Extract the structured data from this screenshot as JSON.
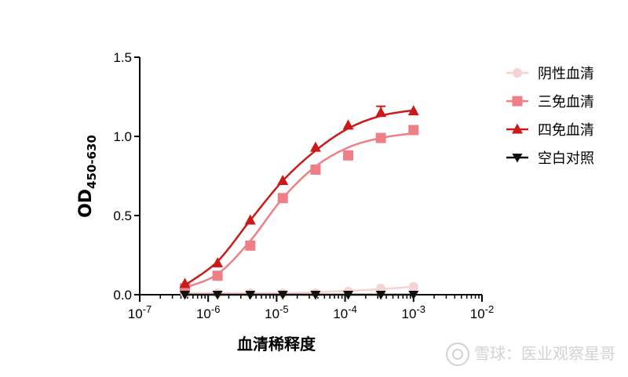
{
  "chart_data": {
    "type": "line",
    "title": "",
    "xlabel": "血清稀释度",
    "ylabel": "OD",
    "ylabel_subscript": "450-630",
    "xscale": "log",
    "xlim": [
      1e-07,
      0.01
    ],
    "ylim": [
      0.0,
      1.5
    ],
    "xtick_exponents": [
      "-7",
      "-6",
      "-5",
      "-4",
      "-3",
      "-2"
    ],
    "ytick_labels": [
      "0.0",
      "0.5",
      "1.0",
      "1.5"
    ],
    "legend_position": "right",
    "grid": false,
    "series": [
      {
        "name": "阴性血清",
        "marker": "circle",
        "color": "#f6d3d3",
        "x": [
          4.57e-07,
          1.37e-06,
          4.12e-06,
          1.23e-05,
          3.7e-05,
          0.000111,
          0.000333,
          0.001
        ],
        "y": [
          0.01,
          0.01,
          0.01,
          0.01,
          0.01,
          0.02,
          0.04,
          0.05
        ],
        "curve_y": [
          0.01,
          0.01,
          0.01,
          0.01,
          0.015,
          0.025,
          0.035,
          0.05
        ]
      },
      {
        "name": "三免血清",
        "marker": "square",
        "color": "#ee7f86",
        "x": [
          4.57e-07,
          1.37e-06,
          4.12e-06,
          1.23e-05,
          3.7e-05,
          0.000111,
          0.000333,
          0.001
        ],
        "y": [
          0.04,
          0.12,
          0.31,
          0.61,
          0.79,
          0.88,
          0.99,
          1.04
        ],
        "curve_y": [
          0.045,
          0.13,
          0.34,
          0.61,
          0.81,
          0.93,
          0.99,
          1.02
        ]
      },
      {
        "name": "四免血清",
        "marker": "triangle-up",
        "color": "#cc1a1a",
        "x": [
          4.57e-07,
          1.37e-06,
          4.12e-06,
          1.23e-05,
          3.7e-05,
          0.000111,
          0.000333,
          0.001
        ],
        "y": [
          0.07,
          0.2,
          0.47,
          0.72,
          0.93,
          1.07,
          1.15,
          1.16
        ],
        "yerr": [
          0,
          0,
          0,
          0,
          0,
          0,
          0.04,
          0
        ],
        "curve_y": [
          0.06,
          0.21,
          0.47,
          0.72,
          0.91,
          1.05,
          1.13,
          1.165
        ]
      },
      {
        "name": "空白对照",
        "marker": "triangle-down",
        "color": "#111111",
        "x": [
          4.57e-07,
          1.37e-06,
          4.12e-06,
          1.23e-05,
          3.7e-05,
          0.000111,
          0.000333,
          0.001
        ],
        "y": [
          0.0,
          0.0,
          0.0,
          0.0,
          0.0,
          0.0,
          0.0,
          0.0
        ],
        "curve_y": [
          0.0,
          0.0,
          0.0,
          0.0,
          0.0,
          0.0,
          0.0,
          0.0
        ]
      }
    ]
  },
  "watermark": {
    "text": "雪球：医业观察星哥"
  }
}
